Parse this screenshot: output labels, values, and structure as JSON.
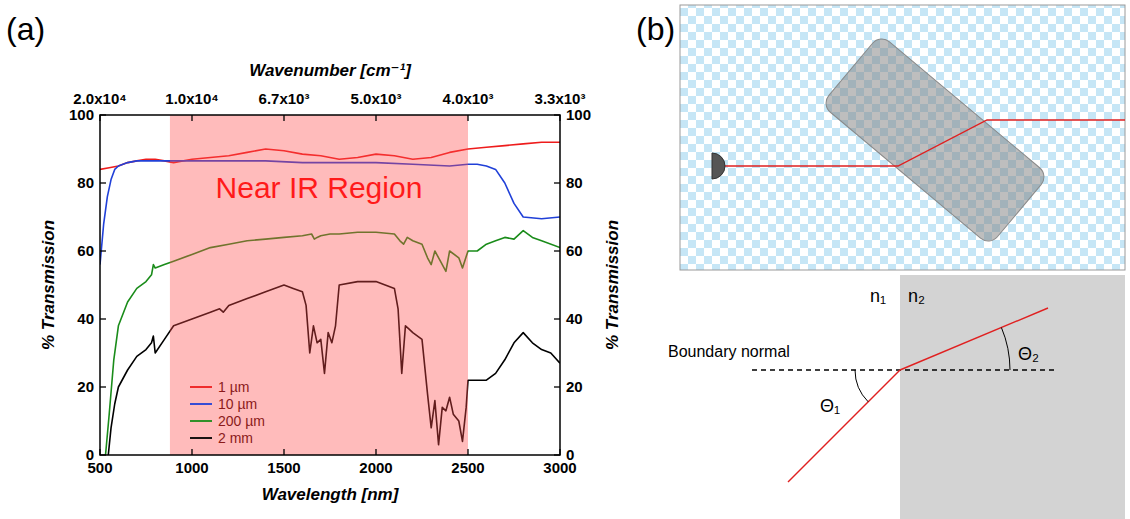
{
  "chart_data": {
    "type": "line",
    "panel_label": "(a)",
    "xlabel": "Wavelength [nm]",
    "ylabel": "% Transmission",
    "y2label": "% Transmission",
    "x2label": "Wavenumber [cm⁻¹]",
    "xlim": [
      500,
      3000
    ],
    "xticks": [
      500,
      1000,
      1500,
      2000,
      2500,
      3000
    ],
    "x2ticks": [
      {
        "value": 500,
        "label": "2.0x10⁴"
      },
      {
        "value": 1000,
        "label": "1.0x10⁴"
      },
      {
        "value": 1500,
        "label": "6.7x10³"
      },
      {
        "value": 2000,
        "label": "5.0x10³"
      },
      {
        "value": 2500,
        "label": "4.0x10³"
      },
      {
        "value": 3000,
        "label": "3.3x10³"
      }
    ],
    "ylim": [
      0,
      100
    ],
    "yticks": [
      0,
      20,
      40,
      60,
      80,
      100
    ],
    "y2lim": [
      0,
      100
    ],
    "y2ticks": [
      0,
      20,
      40,
      60,
      80,
      100
    ],
    "grid": false,
    "legend": "lower left",
    "shaded_region": {
      "x": [
        880,
        2500
      ],
      "label": "Near IR Region",
      "color": "#ff4d4d"
    },
    "series": [
      {
        "name": "1 µm",
        "color": "#ee1c1c",
        "x": [
          500,
          550,
          600,
          650,
          700,
          750,
          800,
          850,
          900,
          1000,
          1100,
          1200,
          1300,
          1400,
          1500,
          1600,
          1700,
          1800,
          1900,
          2000,
          2100,
          2200,
          2300,
          2400,
          2500,
          2600,
          2700,
          2800,
          2900,
          3000
        ],
        "values": [
          84,
          84.5,
          85,
          86,
          86.5,
          87,
          87,
          86.5,
          86,
          87,
          87.5,
          88,
          89,
          90,
          89.5,
          88.5,
          88,
          87,
          87.5,
          88.5,
          88,
          87,
          87.5,
          89,
          90,
          90.5,
          91,
          91.5,
          92,
          92
        ]
      },
      {
        "name": "10 µm",
        "color": "#2040d8",
        "x": [
          500,
          520,
          540,
          560,
          580,
          600,
          650,
          700,
          800,
          900,
          1000,
          1200,
          1400,
          1600,
          1800,
          2000,
          2200,
          2400,
          2500,
          2550,
          2600,
          2650,
          2700,
          2750,
          2800,
          2900,
          3000
        ],
        "values": [
          56,
          68,
          76,
          81,
          84,
          85,
          86,
          86.5,
          86.5,
          86.5,
          86.5,
          86.5,
          86.5,
          86,
          86,
          86,
          85.5,
          85,
          85.5,
          85.5,
          85,
          84,
          80,
          74,
          70,
          69.5,
          70
        ]
      },
      {
        "name": "200 µm",
        "color": "#1a8c1a",
        "x": [
          530,
          550,
          575,
          600,
          650,
          700,
          750,
          780,
          790,
          800,
          850,
          900,
          1000,
          1100,
          1200,
          1300,
          1400,
          1500,
          1600,
          1650,
          1665,
          1680,
          1700,
          1750,
          1800,
          1900,
          2000,
          2100,
          2130,
          2150,
          2170,
          2200,
          2250,
          2280,
          2300,
          2320,
          2350,
          2380,
          2400,
          2450,
          2470,
          2500,
          2550,
          2600,
          2650,
          2700,
          2750,
          2800,
          2850,
          2900,
          3000
        ],
        "values": [
          0,
          12,
          28,
          38,
          45,
          49,
          51,
          53,
          56,
          55,
          56,
          57,
          59,
          61,
          62,
          63,
          63.5,
          64,
          64.5,
          65,
          63.5,
          64,
          64.5,
          65,
          65,
          65.5,
          65.5,
          65,
          63,
          62,
          64,
          63,
          62,
          58,
          56,
          60,
          57,
          54,
          60,
          58,
          55,
          60,
          60,
          62,
          63,
          64,
          63.5,
          66,
          64,
          63,
          61
        ]
      },
      {
        "name": "2 mm",
        "color": "#000000",
        "x": [
          545,
          560,
          580,
          600,
          650,
          700,
          750,
          780,
          790,
          800,
          850,
          900,
          1000,
          1100,
          1150,
          1170,
          1200,
          1300,
          1400,
          1500,
          1550,
          1600,
          1620,
          1640,
          1660,
          1680,
          1700,
          1720,
          1740,
          1760,
          1780,
          1800,
          1900,
          2000,
          2100,
          2120,
          2140,
          2160,
          2180,
          2200,
          2250,
          2280,
          2300,
          2320,
          2340,
          2360,
          2380,
          2400,
          2420,
          2450,
          2470,
          2490,
          2500,
          2550,
          2600,
          2650,
          2700,
          2750,
          2800,
          2850,
          2900,
          2950,
          3000
        ],
        "values": [
          0,
          8,
          15,
          20,
          25,
          29,
          31,
          33,
          35,
          30,
          34,
          38,
          40,
          42,
          43,
          42,
          44,
          46,
          48,
          50,
          49,
          48,
          44,
          30,
          38,
          33,
          34,
          24,
          36,
          33,
          38,
          50,
          51,
          51,
          49,
          43,
          24,
          38,
          37,
          36,
          34,
          18,
          8,
          16,
          3,
          14,
          13,
          17,
          12,
          10,
          4,
          14,
          22,
          22,
          22,
          24,
          28,
          33,
          36,
          33,
          31,
          30,
          27
        ]
      }
    ]
  },
  "diagram": {
    "panel_label": "(b)",
    "medium_labels": [
      "n₁",
      "n₂"
    ],
    "normal_label": "Boundary normal",
    "angle_labels": [
      "Θ₁",
      "Θ₂"
    ]
  }
}
